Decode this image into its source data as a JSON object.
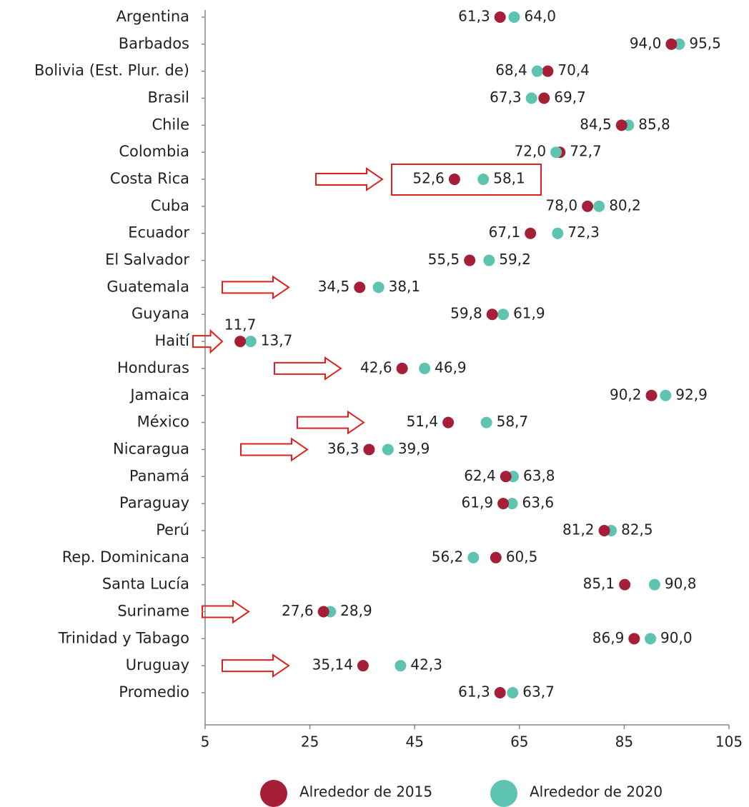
{
  "chart_data": {
    "type": "dot",
    "categories": [
      "Argentina",
      "Barbados",
      "Bolivia (Est. Plur. de)",
      "Brasil",
      "Chile",
      "Colombia",
      "Costa Rica",
      "Cuba",
      "Ecuador",
      "El Salvador",
      "Guatemala",
      "Guyana",
      "Haití",
      "Honduras",
      "Jamaica",
      "México",
      "Nicaragua",
      "Panamá",
      "Paraguay",
      "Perú",
      "Rep. Dominicana",
      "Santa Lucía",
      "Suriname",
      "Trinidad y Tabago",
      "Uruguay",
      "Promedio"
    ],
    "series": [
      {
        "name": "Alrededor de 2015",
        "color": "#a51f37",
        "label_color": "#a8324a",
        "values": [
          61.3,
          94.0,
          70.4,
          69.7,
          84.5,
          72.7,
          52.6,
          78.0,
          67.1,
          55.5,
          34.5,
          59.8,
          11.7,
          42.6,
          90.2,
          51.4,
          36.3,
          62.4,
          61.9,
          81.2,
          60.5,
          85.1,
          27.6,
          86.9,
          35.14,
          61.3
        ],
        "value_labels": [
          "61,3",
          "94,0",
          "70,4",
          "69,7",
          "84,5",
          "72,7",
          "52,6",
          "78,0",
          "67,1",
          "55,5",
          "34,5",
          "59,8",
          "11,7",
          "42,6",
          "90,2",
          "51,4",
          "36,3",
          "62,4",
          "61,9",
          "81,2",
          "60,5",
          "85,1",
          "27,6",
          "86,9",
          "35,14",
          "61,3"
        ]
      },
      {
        "name": "Alrededor de 2020",
        "color": "#5ec4b0",
        "label_color": "#222222",
        "values": [
          64.0,
          95.5,
          68.4,
          67.3,
          85.8,
          72.0,
          58.1,
          80.2,
          72.3,
          59.2,
          38.1,
          61.9,
          13.7,
          46.9,
          92.9,
          58.7,
          39.9,
          63.8,
          63.6,
          82.5,
          56.2,
          90.8,
          28.9,
          90.0,
          42.3,
          63.7
        ],
        "value_labels": [
          "64,0",
          "95,5",
          "68,4",
          "67,3",
          "85,8",
          "72,0",
          "58,1",
          "80,2",
          "72,3",
          "59,2",
          "38,1",
          "61,9",
          "13,7",
          "46,9",
          "92,9",
          "58,7",
          "39,9",
          "63,8",
          "63,6",
          "82,5",
          "56,2",
          "90,8",
          "28,9",
          "90,0",
          "42,3",
          "63,7"
        ]
      }
    ],
    "xlim": [
      5,
      105
    ],
    "xticks": [
      5,
      25,
      45,
      65,
      85,
      105
    ]
  }
}
